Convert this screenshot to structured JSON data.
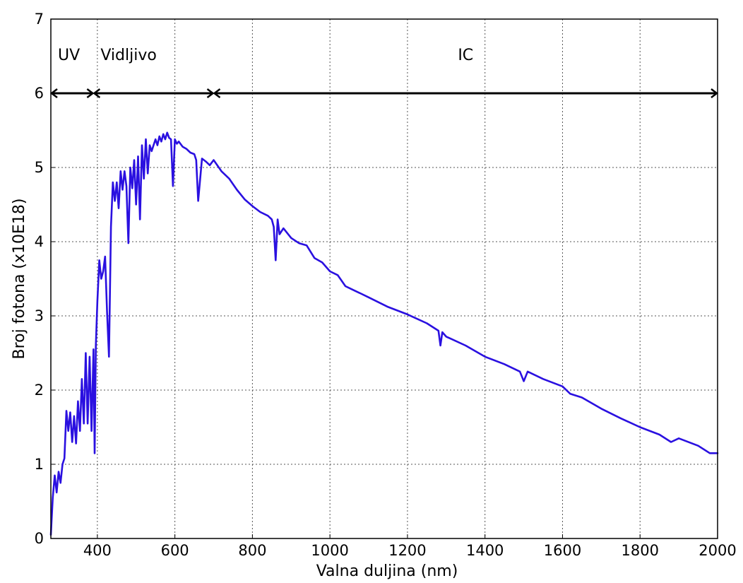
{
  "chart_data": {
    "type": "line",
    "title": "",
    "xlabel": "Valna duljina (nm)",
    "ylabel": "Broj fotona (x10E18)",
    "xlim": [
      280,
      2000
    ],
    "ylim": [
      0,
      7
    ],
    "xticks": [
      400,
      600,
      800,
      1000,
      1200,
      1400,
      1600,
      1800,
      2000
    ],
    "yticks": [
      0,
      1,
      2,
      3,
      4,
      5,
      6,
      7
    ],
    "grid": true,
    "grid_style": "dotted",
    "line_color": "#2a10e0",
    "regions": [
      {
        "label": "UV",
        "x_start": 280,
        "x_end": 390
      },
      {
        "label": "Vidljivo",
        "x_start": 390,
        "x_end": 700
      },
      {
        "label": "IC",
        "x_start": 700,
        "x_end": 2000
      }
    ],
    "region_arrow_y": 6,
    "series": [
      {
        "x": [
          280,
          285,
          290,
          295,
          300,
          305,
          310,
          315,
          320,
          325,
          330,
          335,
          340,
          345,
          350,
          355,
          360,
          365,
          370,
          375,
          380,
          385,
          390,
          393,
          396,
          400,
          405,
          410,
          415,
          420,
          425,
          430,
          435,
          440,
          445,
          450,
          455,
          460,
          465,
          470,
          475,
          480,
          485,
          490,
          495,
          500,
          505,
          510,
          515,
          520,
          525,
          530,
          535,
          540,
          545,
          550,
          555,
          560,
          565,
          570,
          575,
          580,
          585,
          590,
          595,
          600,
          605,
          610,
          620,
          630,
          640,
          650,
          655,
          660,
          670,
          680,
          690,
          700,
          720,
          740,
          760,
          780,
          800,
          820,
          840,
          850,
          855,
          860,
          865,
          870,
          880,
          900,
          920,
          940,
          960,
          980,
          1000,
          1020,
          1040,
          1060,
          1080,
          1100,
          1150,
          1200,
          1250,
          1280,
          1285,
          1290,
          1300,
          1350,
          1400,
          1450,
          1490,
          1500,
          1510,
          1550,
          1600,
          1620,
          1650,
          1700,
          1750,
          1800,
          1850,
          1880,
          1900,
          1950,
          1980,
          2000
        ],
        "values": [
          0.05,
          0.55,
          0.85,
          0.62,
          0.9,
          0.75,
          1.0,
          1.08,
          1.72,
          1.45,
          1.7,
          1.3,
          1.65,
          1.28,
          1.85,
          1.45,
          2.15,
          1.55,
          2.5,
          1.55,
          2.45,
          1.45,
          2.55,
          1.15,
          2.6,
          3.2,
          3.75,
          3.5,
          3.6,
          3.8,
          3.05,
          2.45,
          4.2,
          4.8,
          4.55,
          4.8,
          4.45,
          4.95,
          4.7,
          4.95,
          4.75,
          3.98,
          5.0,
          4.72,
          5.1,
          4.5,
          5.15,
          4.3,
          5.3,
          4.85,
          5.38,
          4.92,
          5.3,
          5.22,
          5.3,
          5.38,
          5.3,
          5.42,
          5.35,
          5.45,
          5.38,
          5.47,
          5.4,
          5.38,
          4.75,
          5.38,
          5.32,
          5.35,
          5.28,
          5.25,
          5.2,
          5.18,
          5.1,
          4.55,
          5.12,
          5.08,
          5.03,
          5.1,
          4.95,
          4.85,
          4.7,
          4.57,
          4.48,
          4.4,
          4.35,
          4.3,
          4.2,
          3.75,
          4.3,
          4.1,
          4.18,
          4.05,
          3.98,
          3.95,
          3.78,
          3.72,
          3.6,
          3.55,
          3.4,
          3.35,
          3.3,
          3.25,
          3.12,
          3.02,
          2.9,
          2.8,
          2.6,
          2.78,
          2.72,
          2.6,
          2.45,
          2.35,
          2.25,
          2.12,
          2.25,
          2.15,
          2.05,
          1.95,
          1.9,
          1.75,
          1.62,
          1.5,
          1.4,
          1.3,
          1.35,
          1.25,
          1.15,
          1.15
        ]
      }
    ]
  }
}
